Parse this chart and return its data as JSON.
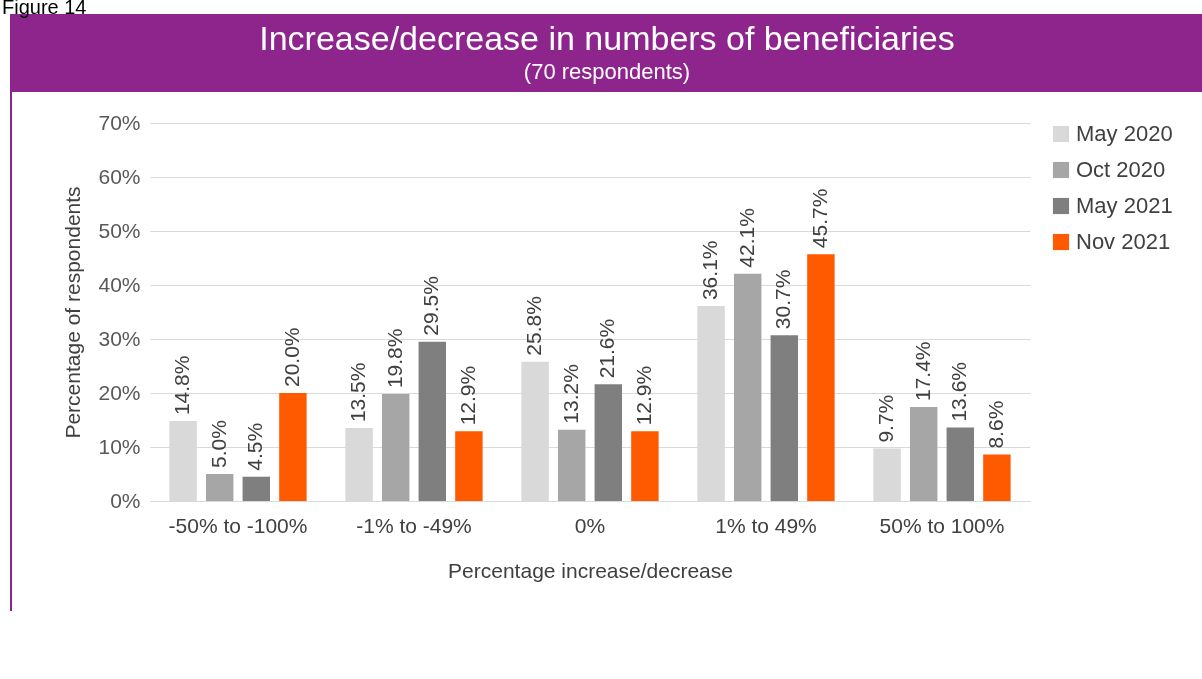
{
  "chart_data": {
    "type": "bar",
    "title": "Increase/decrease in numbers of beneficiaries",
    "subtitle": "(70 respondents)",
    "xlabel": "Percentage increase/decrease",
    "ylabel": "Percentage of respondents",
    "annotations": [
      "Figure 14"
    ],
    "categories": [
      "-50% to -100%",
      "-1% to -49%",
      "0%",
      "1% to 49%",
      "50% to 100%"
    ],
    "series": [
      {
        "name": "May 2020",
        "color": "#d9d9d9",
        "values": [
          14.8,
          13.5,
          25.8,
          36.1,
          9.7
        ],
        "value_labels": [
          "14.8%",
          "13.5%",
          "25.8%",
          "36.1%",
          "9.7%"
        ]
      },
      {
        "name": "Oct 2020",
        "color": "#a6a6a6",
        "values": [
          5.0,
          19.8,
          13.2,
          42.1,
          17.4
        ],
        "value_labels": [
          "5.0%",
          "19.8%",
          "13.2%",
          "42.1%",
          "17.4%"
        ]
      },
      {
        "name": "May 2021",
        "color": "#7f7f7f",
        "values": [
          4.5,
          29.5,
          21.6,
          30.7,
          13.6
        ],
        "value_labels": [
          "4.5%",
          "29.5%",
          "21.6%",
          "30.7%",
          "13.6%"
        ]
      },
      {
        "name": "Nov 2021",
        "color": "#ff5a00",
        "values": [
          20.0,
          12.9,
          12.9,
          45.7,
          8.6
        ],
        "value_labels": [
          "20.0%",
          "12.9%",
          "12.9%",
          "45.7%",
          "8.6%"
        ]
      }
    ],
    "ylim": [
      0,
      70
    ],
    "yticks": [
      {
        "value": 0,
        "label": "0%"
      },
      {
        "value": 10,
        "label": "10%"
      },
      {
        "value": 20,
        "label": "20%"
      },
      {
        "value": 30,
        "label": "30%"
      },
      {
        "value": 40,
        "label": "40%"
      },
      {
        "value": 50,
        "label": "50%"
      },
      {
        "value": 60,
        "label": "60%"
      },
      {
        "value": 70,
        "label": "70%"
      }
    ],
    "grid": "y",
    "legend": "right"
  }
}
